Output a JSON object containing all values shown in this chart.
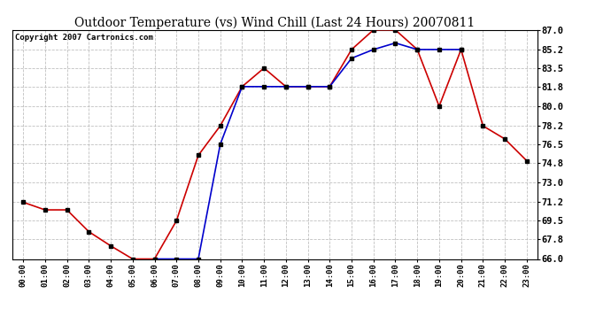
{
  "title": "Outdoor Temperature (vs) Wind Chill (Last 24 Hours) 20070811",
  "copyright": "Copyright 2007 Cartronics.com",
  "hours": [
    "00:00",
    "01:00",
    "02:00",
    "03:00",
    "04:00",
    "05:00",
    "06:00",
    "07:00",
    "08:00",
    "09:00",
    "10:00",
    "11:00",
    "12:00",
    "13:00",
    "14:00",
    "15:00",
    "16:00",
    "17:00",
    "18:00",
    "19:00",
    "20:00",
    "21:00",
    "22:00",
    "23:00"
  ],
  "temp": [
    71.2,
    70.5,
    70.5,
    68.5,
    67.2,
    66.0,
    66.0,
    69.5,
    75.5,
    78.2,
    81.8,
    83.5,
    81.8,
    81.8,
    81.8,
    85.2,
    87.0,
    87.0,
    85.2,
    80.0,
    85.2,
    78.2,
    77.0,
    75.0
  ],
  "windchill": [
    null,
    null,
    null,
    null,
    null,
    null,
    66.0,
    66.0,
    66.0,
    76.5,
    81.8,
    81.8,
    81.8,
    81.8,
    81.8,
    84.4,
    85.2,
    85.8,
    85.2,
    85.2,
    85.2,
    null,
    null,
    null
  ],
  "temp_color": "#cc0000",
  "windchill_color": "#0000cc",
  "ylim_min": 66.0,
  "ylim_max": 87.0,
  "yticks": [
    66.0,
    67.8,
    69.5,
    71.2,
    73.0,
    74.8,
    76.5,
    78.2,
    80.0,
    81.8,
    83.5,
    85.2,
    87.0
  ],
  "background_color": "#ffffff",
  "grid_color": "#b0b0b0",
  "marker": "s",
  "marker_size": 3,
  "line_width": 1.2
}
